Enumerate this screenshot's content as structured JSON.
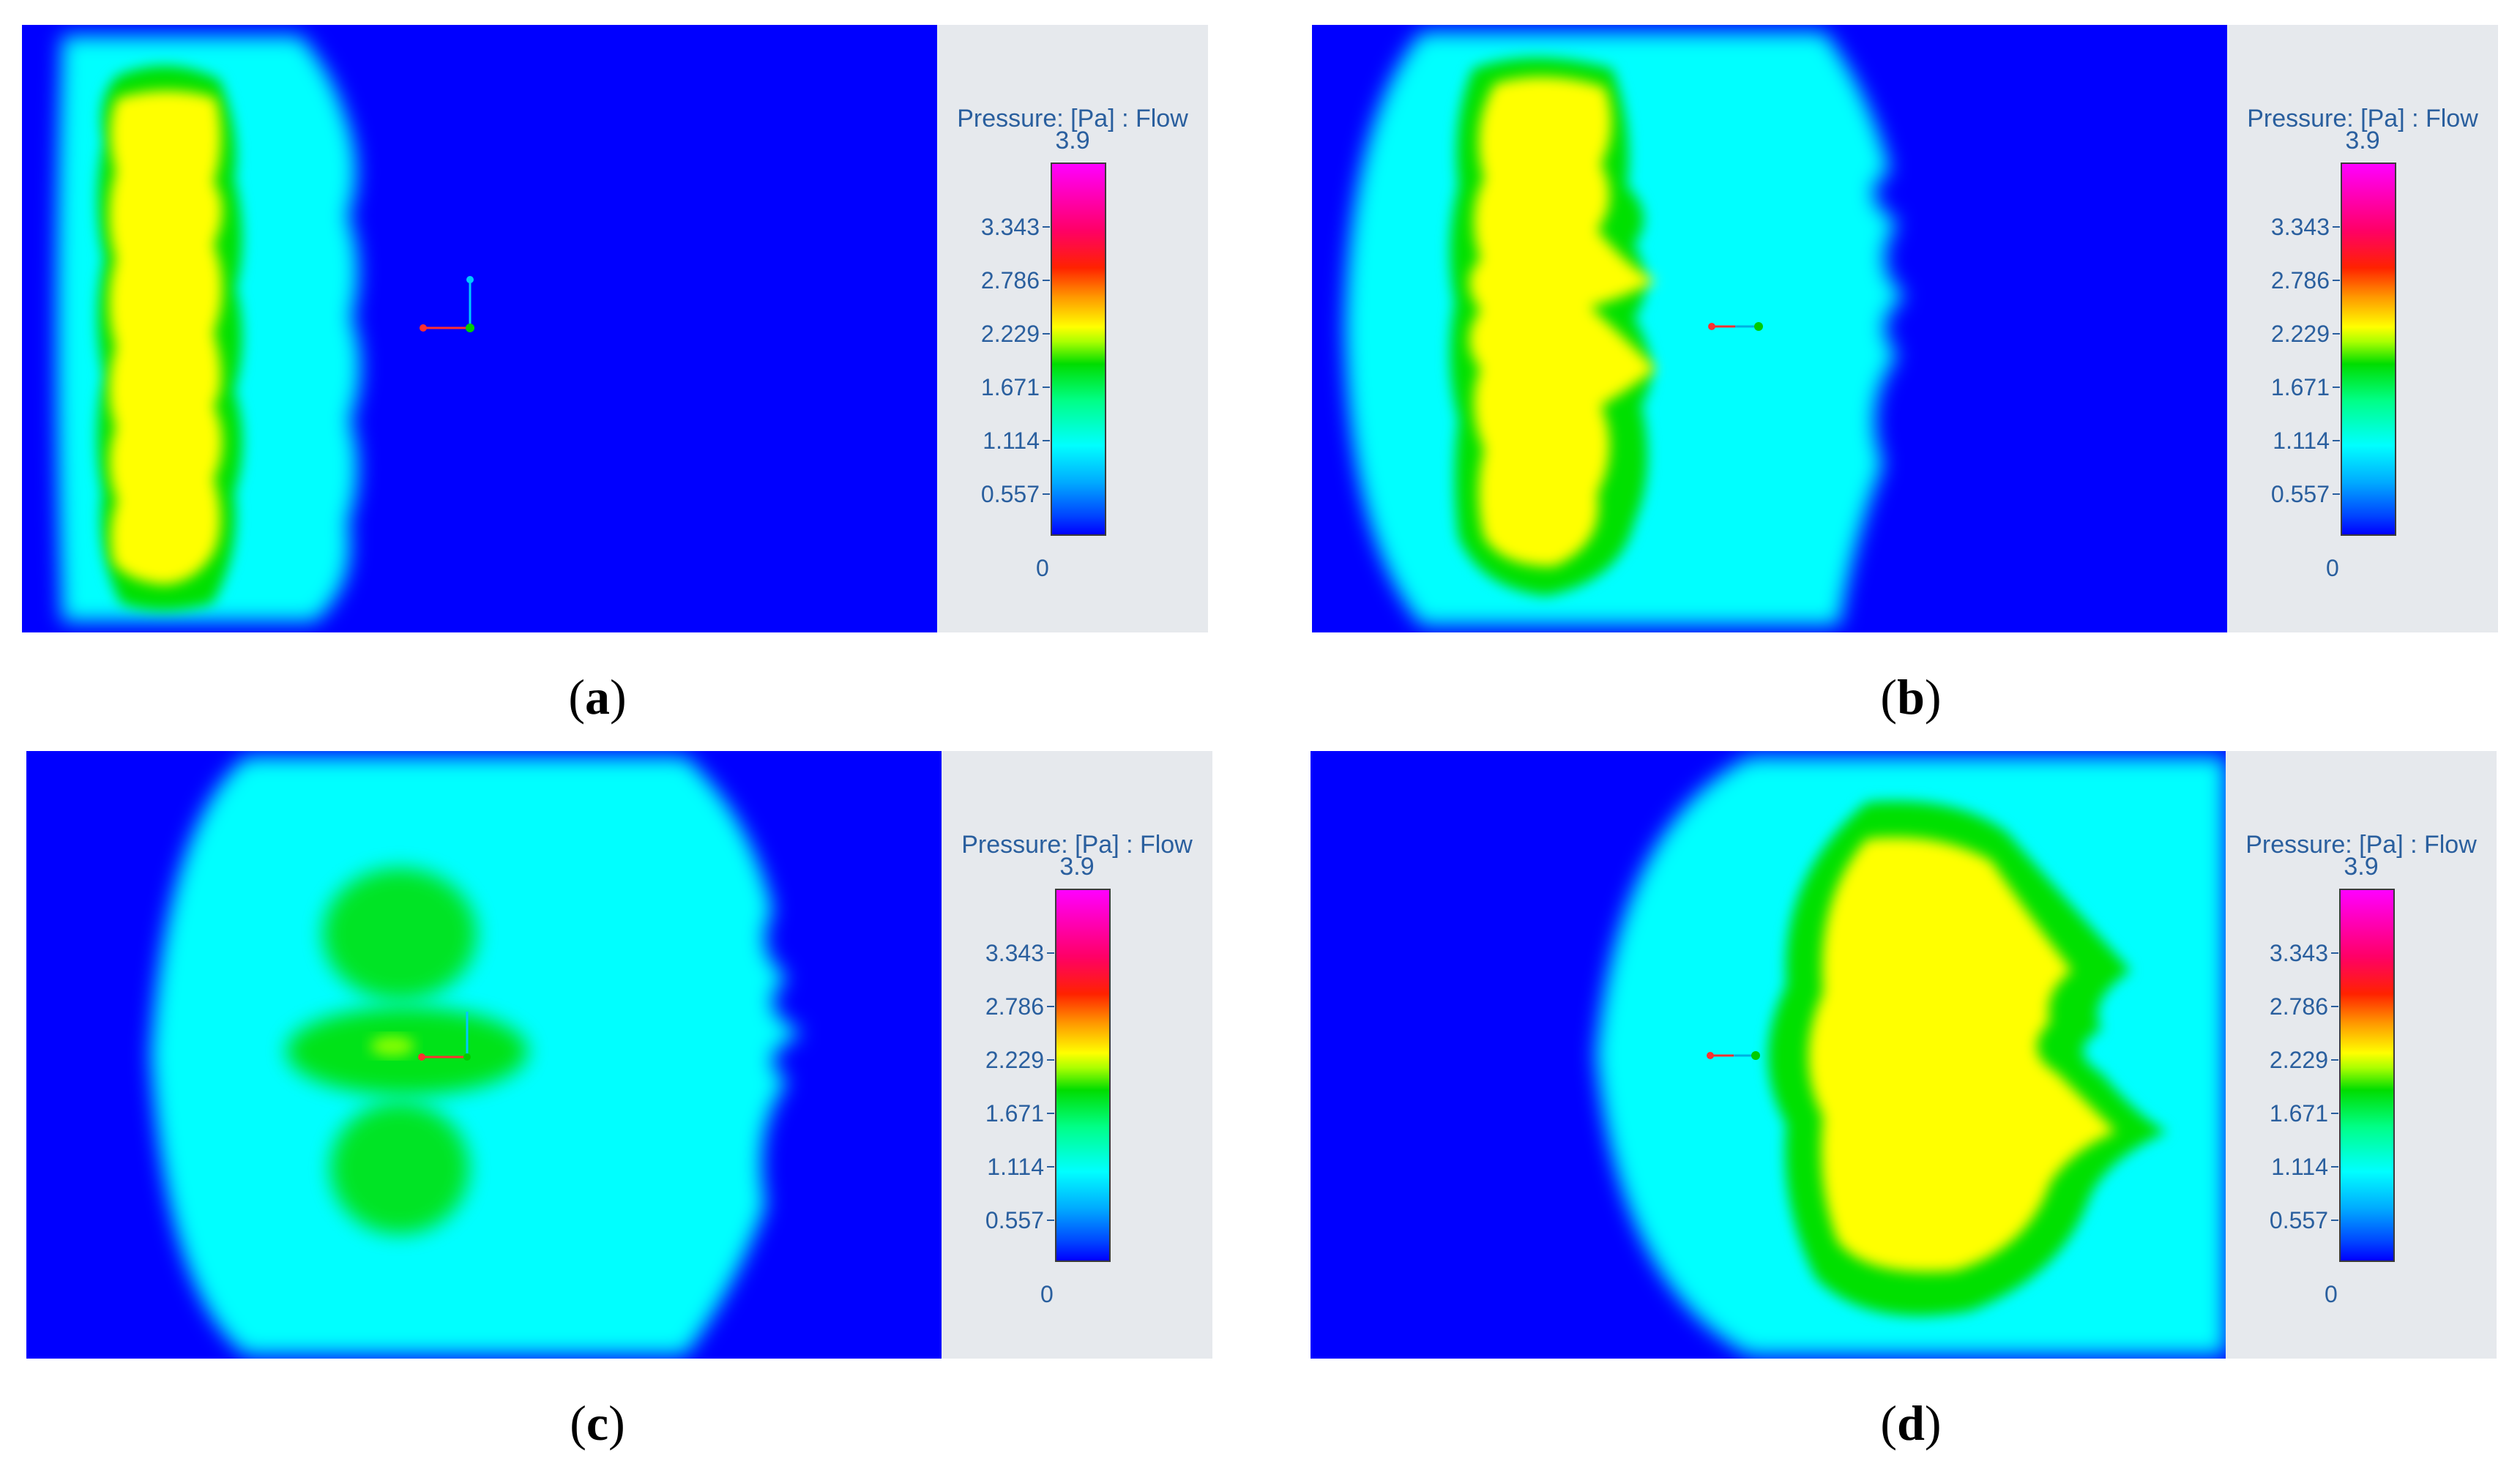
{
  "legend": {
    "title": "Pressure: [Pa] : Flow",
    "max": "3.9",
    "ticks": [
      "3.343",
      "2.786",
      "2.229",
      "1.671",
      "1.114",
      "0.557"
    ],
    "min": "0"
  },
  "panels": [
    {
      "id": "a",
      "open": "(",
      "letter": "a",
      "close": ")"
    },
    {
      "id": "b",
      "open": "(",
      "letter": "b",
      "close": ")"
    },
    {
      "id": "c",
      "open": "(",
      "letter": "c",
      "close": ")"
    },
    {
      "id": "d",
      "open": "(",
      "letter": "d",
      "close": ")"
    }
  ],
  "colors": {
    "background": "#0000ff",
    "low": "#00ffff",
    "mid": "#00e000",
    "high": "#ffff00",
    "legend_bg": "#e6e9ed",
    "legend_text": "#2a5f9e"
  }
}
